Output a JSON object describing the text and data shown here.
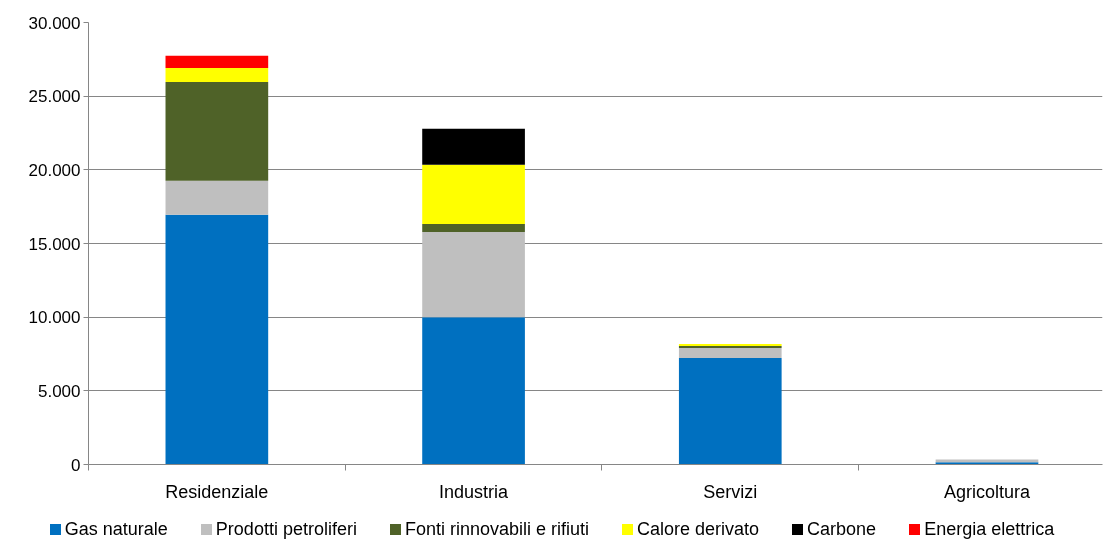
{
  "chart_data": {
    "type": "bar",
    "stacked": true,
    "categories": [
      "Residenziale",
      "Industria",
      "Servizi",
      "Agricoltura"
    ],
    "series": [
      {
        "name": "Gas naturale",
        "color": "#0070c0",
        "values": [
          16950,
          10000,
          7230,
          150
        ]
      },
      {
        "name": "Prodotti petroliferi",
        "color": "#bfbfbf",
        "values": [
          2310,
          5780,
          680,
          190
        ]
      },
      {
        "name": "Fonti rinnovabili e rifiuti",
        "color": "#4f6228",
        "values": [
          6700,
          550,
          140,
          null
        ]
      },
      {
        "name": "Calore derivato",
        "color": "#ffff00",
        "values": [
          950,
          4010,
          130,
          null
        ]
      },
      {
        "name": "Carbone",
        "color": "#000000",
        "values": [
          null,
          2450,
          null,
          null
        ]
      },
      {
        "name": "Energia elettrica",
        "color": "#ff0000",
        "values": [
          840,
          null,
          null,
          null
        ]
      }
    ],
    "ylim": [
      0,
      30000
    ],
    "yticks": [
      0,
      {
        "value": 5000,
        "label": "5.000"
      },
      {
        "value": 10000,
        "label": "10.000"
      },
      {
        "value": 15000,
        "label": "15.000"
      },
      {
        "value": 20000,
        "label": "20.000"
      },
      {
        "value": 25000,
        "label": "25.000"
      },
      {
        "value": 30000,
        "label": "30.000"
      }
    ],
    "grid": "y",
    "legend": "bottom"
  }
}
